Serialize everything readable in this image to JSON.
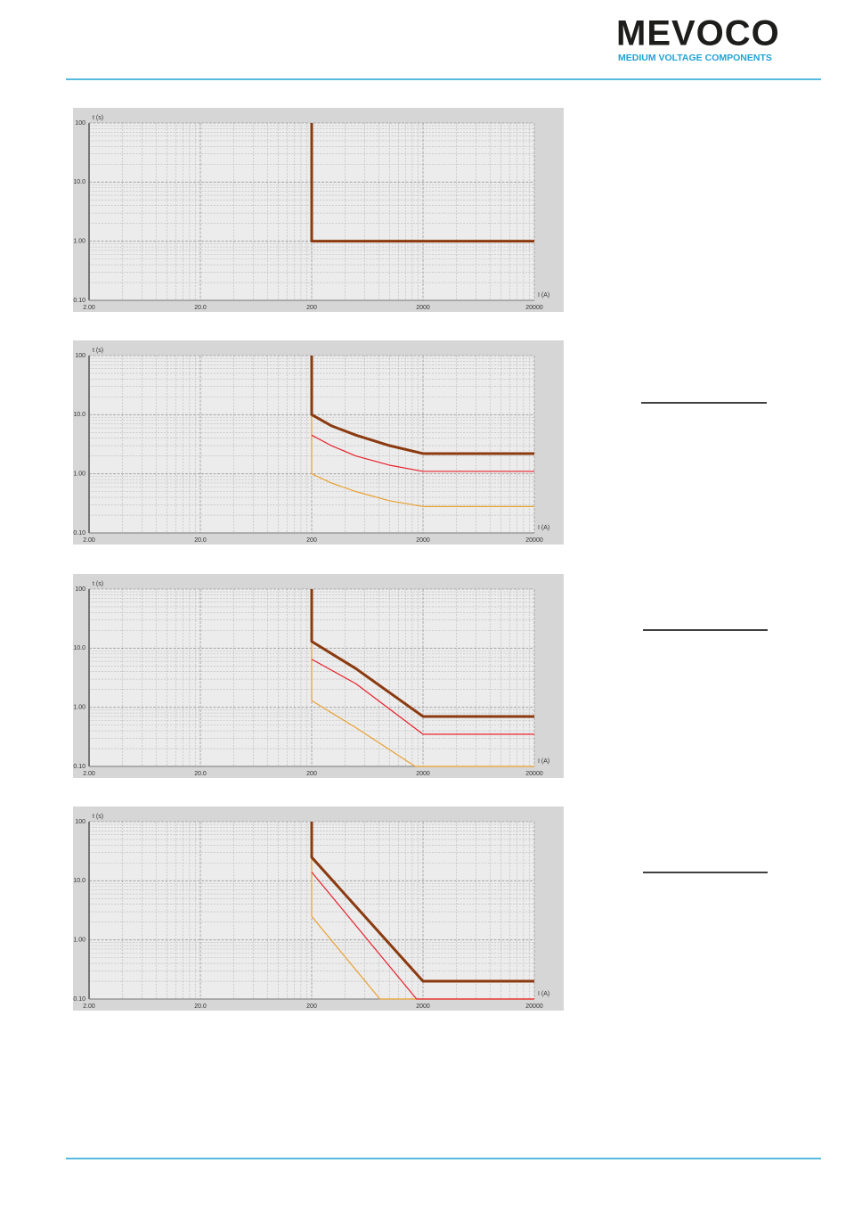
{
  "header": {
    "brand": "MEVOCO",
    "tagline": "MEDIUM VOLTAGE COMPONENTS"
  },
  "chart_data": [
    {
      "type": "line",
      "y_label": "t (s)",
      "x_label": "I (A)",
      "log_x": true,
      "log_y": true,
      "grid": true,
      "minor_grid": true,
      "xlim": [
        2,
        20000
      ],
      "ylim": [
        0.1,
        100
      ],
      "xticks": [
        {
          "value": 2,
          "label": "2.00"
        },
        {
          "value": 20,
          "label": "20.0"
        },
        200,
        2000,
        20000
      ],
      "yticks": [
        {
          "value": 0.1,
          "label": "0.10"
        },
        {
          "value": 1,
          "label": "1.00"
        },
        {
          "value": 10,
          "label": "10.0"
        },
        100
      ],
      "series": [
        {
          "color": "#8b3a0f",
          "width": 3,
          "x": [
            200,
            200,
            20000
          ],
          "values": [
            100,
            1,
            1
          ]
        }
      ]
    },
    {
      "type": "line",
      "y_label": "t (s)",
      "x_label": "I (A)",
      "log_x": true,
      "log_y": true,
      "grid": true,
      "minor_grid": true,
      "xlim": [
        2,
        20000
      ],
      "ylim": [
        0.1,
        100
      ],
      "xticks": [
        {
          "value": 2,
          "label": "2.00"
        },
        {
          "value": 20,
          "label": "20.0"
        },
        200,
        2000,
        20000
      ],
      "yticks": [
        {
          "value": 0.1,
          "label": "0.10"
        },
        {
          "value": 1,
          "label": "1.00"
        },
        {
          "value": 10,
          "label": "10.0"
        },
        100
      ],
      "series": [
        {
          "color": "#e8a030",
          "width": 1.2,
          "x": [
            200,
            200,
            300,
            500,
            1000,
            2000,
            20000
          ],
          "values": [
            10,
            1,
            0.7,
            0.5,
            0.35,
            0.28,
            0.28
          ]
        },
        {
          "color": "#e8202a",
          "width": 1.2,
          "x": [
            200,
            300,
            500,
            1000,
            2000,
            20000
          ],
          "values": [
            4.5,
            3,
            2,
            1.4,
            1.1,
            1.1
          ]
        },
        {
          "color": "#8b3a0f",
          "width": 3,
          "x": [
            200,
            200,
            300,
            500,
            1000,
            2000,
            20000
          ],
          "values": [
            100,
            10,
            6.5,
            4.5,
            3,
            2.2,
            2.2
          ]
        }
      ]
    },
    {
      "type": "line",
      "y_label": "t (s)",
      "x_label": "I (A)",
      "log_x": true,
      "log_y": true,
      "grid": true,
      "minor_grid": true,
      "xlim": [
        2,
        20000
      ],
      "ylim": [
        0.1,
        100
      ],
      "xticks": [
        {
          "value": 2,
          "label": "2.00"
        },
        {
          "value": 20,
          "label": "20.0"
        },
        200,
        2000,
        20000
      ],
      "yticks": [
        {
          "value": 0.1,
          "label": "0.10"
        },
        {
          "value": 1,
          "label": "1.00"
        },
        {
          "value": 10,
          "label": "10.0"
        },
        100
      ],
      "series": [
        {
          "color": "#e8a030",
          "width": 1.2,
          "x": [
            200,
            200,
            500,
            1700,
            20000
          ],
          "values": [
            13,
            1.3,
            0.45,
            0.1,
            0.1
          ]
        },
        {
          "color": "#e8202a",
          "width": 1.2,
          "x": [
            200,
            500,
            2000,
            20000
          ],
          "values": [
            6.5,
            2.5,
            0.35,
            0.35
          ]
        },
        {
          "color": "#8b3a0f",
          "width": 3,
          "x": [
            200,
            200,
            500,
            2000,
            20000
          ],
          "values": [
            100,
            13,
            4.5,
            0.7,
            0.7
          ]
        }
      ]
    },
    {
      "type": "line",
      "y_label": "t (s)",
      "x_label": "I (A)",
      "log_x": true,
      "log_y": true,
      "grid": true,
      "minor_grid": true,
      "xlim": [
        2,
        20000
      ],
      "ylim": [
        0.1,
        100
      ],
      "xticks": [
        {
          "value": 2,
          "label": "2.00"
        },
        {
          "value": 20,
          "label": "20.0"
        },
        200,
        2000,
        20000
      ],
      "yticks": [
        {
          "value": 0.1,
          "label": "0.10"
        },
        {
          "value": 1,
          "label": "1.00"
        },
        {
          "value": 10,
          "label": "10.0"
        },
        100
      ],
      "series": [
        {
          "color": "#e8a030",
          "width": 1.2,
          "x": [
            200,
            200,
            820,
            20000
          ],
          "values": [
            25,
            2.5,
            0.1,
            0.1
          ]
        },
        {
          "color": "#e8202a",
          "width": 1.2,
          "x": [
            200,
            1750,
            20000
          ],
          "values": [
            14,
            0.1,
            0.1
          ]
        },
        {
          "color": "#8b3a0f",
          "width": 3,
          "x": [
            200,
            200,
            2000,
            20000
          ],
          "values": [
            100,
            25,
            0.2,
            0.2
          ]
        }
      ]
    }
  ]
}
